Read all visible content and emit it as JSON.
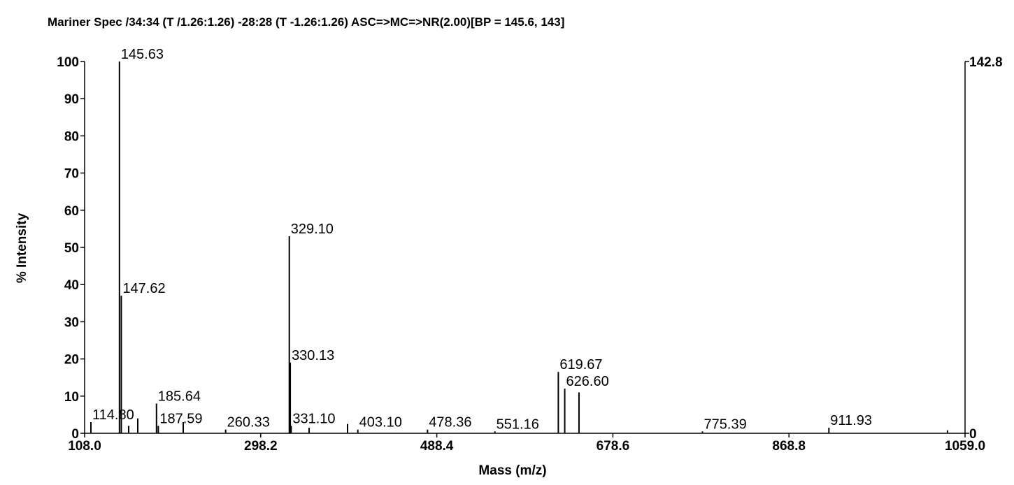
{
  "chart_data": {
    "type": "stick",
    "title": "Mariner Spec /34:34 (T /1.26:1.26) -28:28 (T -1.26:1.26)  ASC=>MC=>NR(2.00)[BP = 145.6, 143]",
    "x_label": "Mass (m/z)",
    "y_label": "% Intensity",
    "xlim": [
      108.0,
      1059.0
    ],
    "xticks": [
      {
        "value": 108.0,
        "label": "108.0"
      },
      298.2,
      488.4,
      678.6,
      868.8,
      {
        "value": 1059.0,
        "label": "1059.0"
      }
    ],
    "ylim": [
      0,
      100
    ],
    "yticks": [
      0,
      10,
      20,
      30,
      40,
      50,
      60,
      70,
      80,
      90,
      100
    ],
    "y2lim": [
      0,
      142.8
    ],
    "y2ticks": [
      0,
      142.8
    ],
    "color": "#000000",
    "x": [
      114.8,
      145.63,
      147.62,
      155.6,
      165.4,
      185.64,
      187.59,
      214.5,
      260.33,
      329.1,
      330.13,
      331.1,
      350.5,
      392.0,
      403.1,
      478.36,
      551.16,
      619.67,
      626.6,
      642.0,
      775.39,
      911.93,
      1040.0
    ],
    "values": [
      3,
      100,
      37,
      2,
      4,
      8,
      2,
      3,
      1,
      53,
      19,
      2,
      1.5,
      2.5,
      1,
      1,
      0.5,
      16.5,
      12,
      11,
      0.5,
      1.5,
      0.8
    ],
    "peak_labels": [
      "114.80",
      "145.63",
      "147.62",
      null,
      null,
      "185.64",
      "187.59",
      null,
      "260.33",
      "329.10",
      "330.13",
      "331.10",
      null,
      null,
      "403.10",
      "478.36",
      "551.16",
      "619.67",
      "626.60",
      null,
      "775.39",
      "911.93",
      null
    ]
  }
}
